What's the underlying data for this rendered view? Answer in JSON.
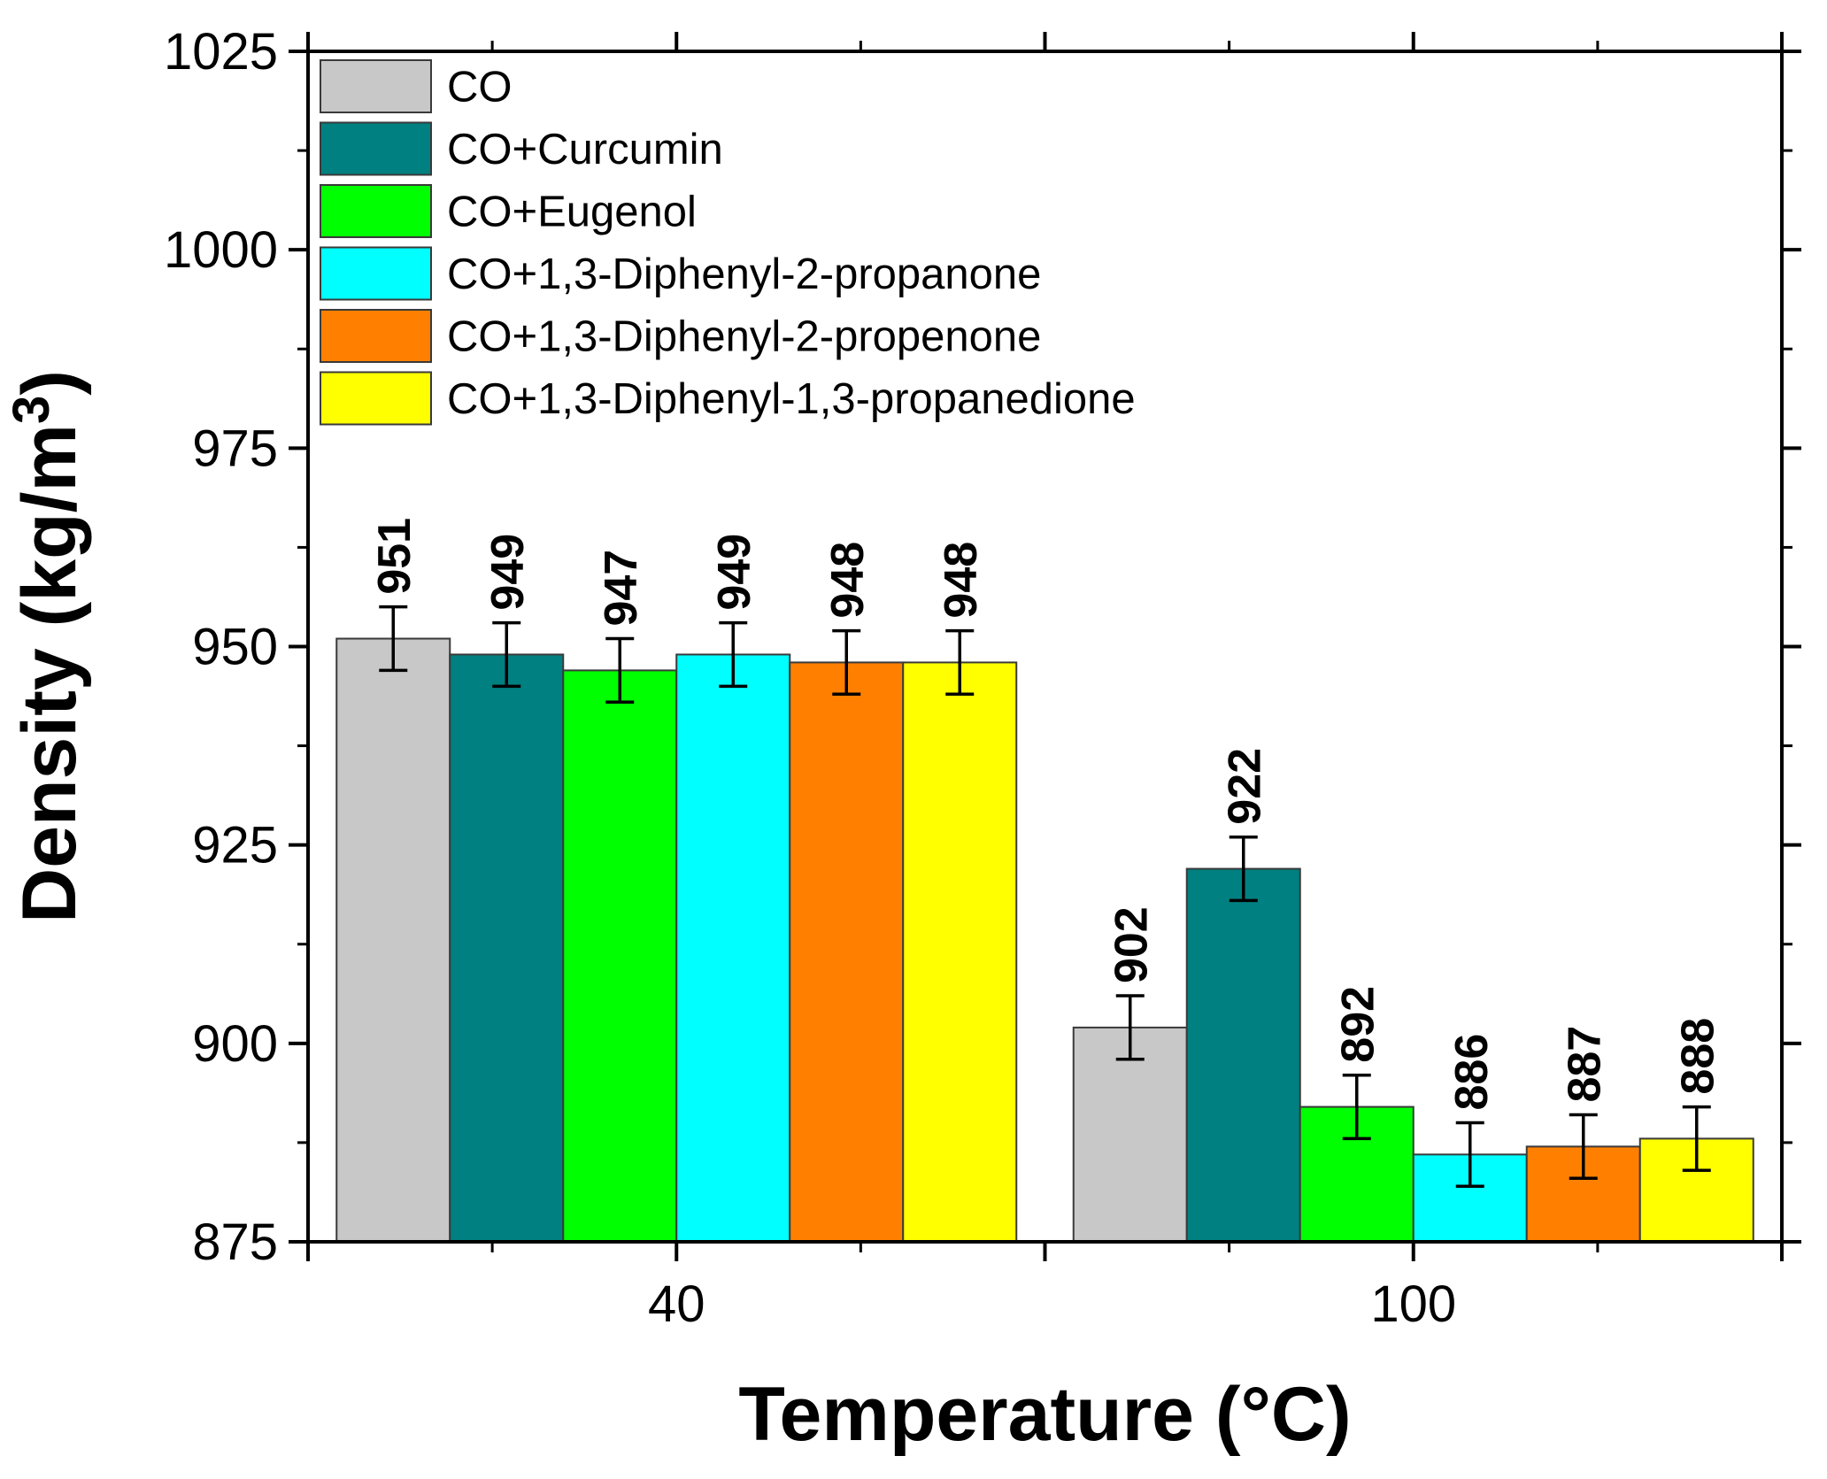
{
  "chart_data": {
    "type": "bar",
    "title": "",
    "xlabel": "Temperature (°C)",
    "ylabel": "Density (kg/m",
    "ylabel_superscript": "3",
    "ylabel_close": ")",
    "ylim": [
      875,
      1025
    ],
    "yticks": [
      875,
      900,
      925,
      950,
      975,
      1000,
      1025
    ],
    "categories": [
      "40",
      "100"
    ],
    "legend_position": "top-left",
    "series": [
      {
        "name": "CO",
        "color": "#c8c8c8",
        "values": [
          951,
          902
        ],
        "labels": [
          "951",
          "902"
        ],
        "errors": [
          4,
          4
        ]
      },
      {
        "name": "CO+Curcumin",
        "color": "#008080",
        "values": [
          949,
          922
        ],
        "labels": [
          "949",
          "922"
        ],
        "errors": [
          4,
          4
        ]
      },
      {
        "name": "CO+Eugenol",
        "color": "#00ff00",
        "values": [
          947,
          892
        ],
        "labels": [
          "947",
          "892"
        ],
        "errors": [
          4,
          4
        ]
      },
      {
        "name": "CO+1,3-Diphenyl-2-propanone",
        "color": "#00ffff",
        "values": [
          949,
          886
        ],
        "labels": [
          "949",
          "886"
        ],
        "errors": [
          4,
          4
        ]
      },
      {
        "name": "CO+1,3-Diphenyl-2-propenone",
        "color": "#ff8000",
        "values": [
          948,
          887
        ],
        "labels": [
          "948",
          "887"
        ],
        "errors": [
          4,
          4
        ]
      },
      {
        "name": "CO+1,3-Diphenyl-1,3-propanedione",
        "color": "#ffff00",
        "values": [
          948,
          888
        ],
        "labels": [
          "948",
          "888"
        ],
        "errors": [
          4,
          4
        ]
      }
    ]
  }
}
